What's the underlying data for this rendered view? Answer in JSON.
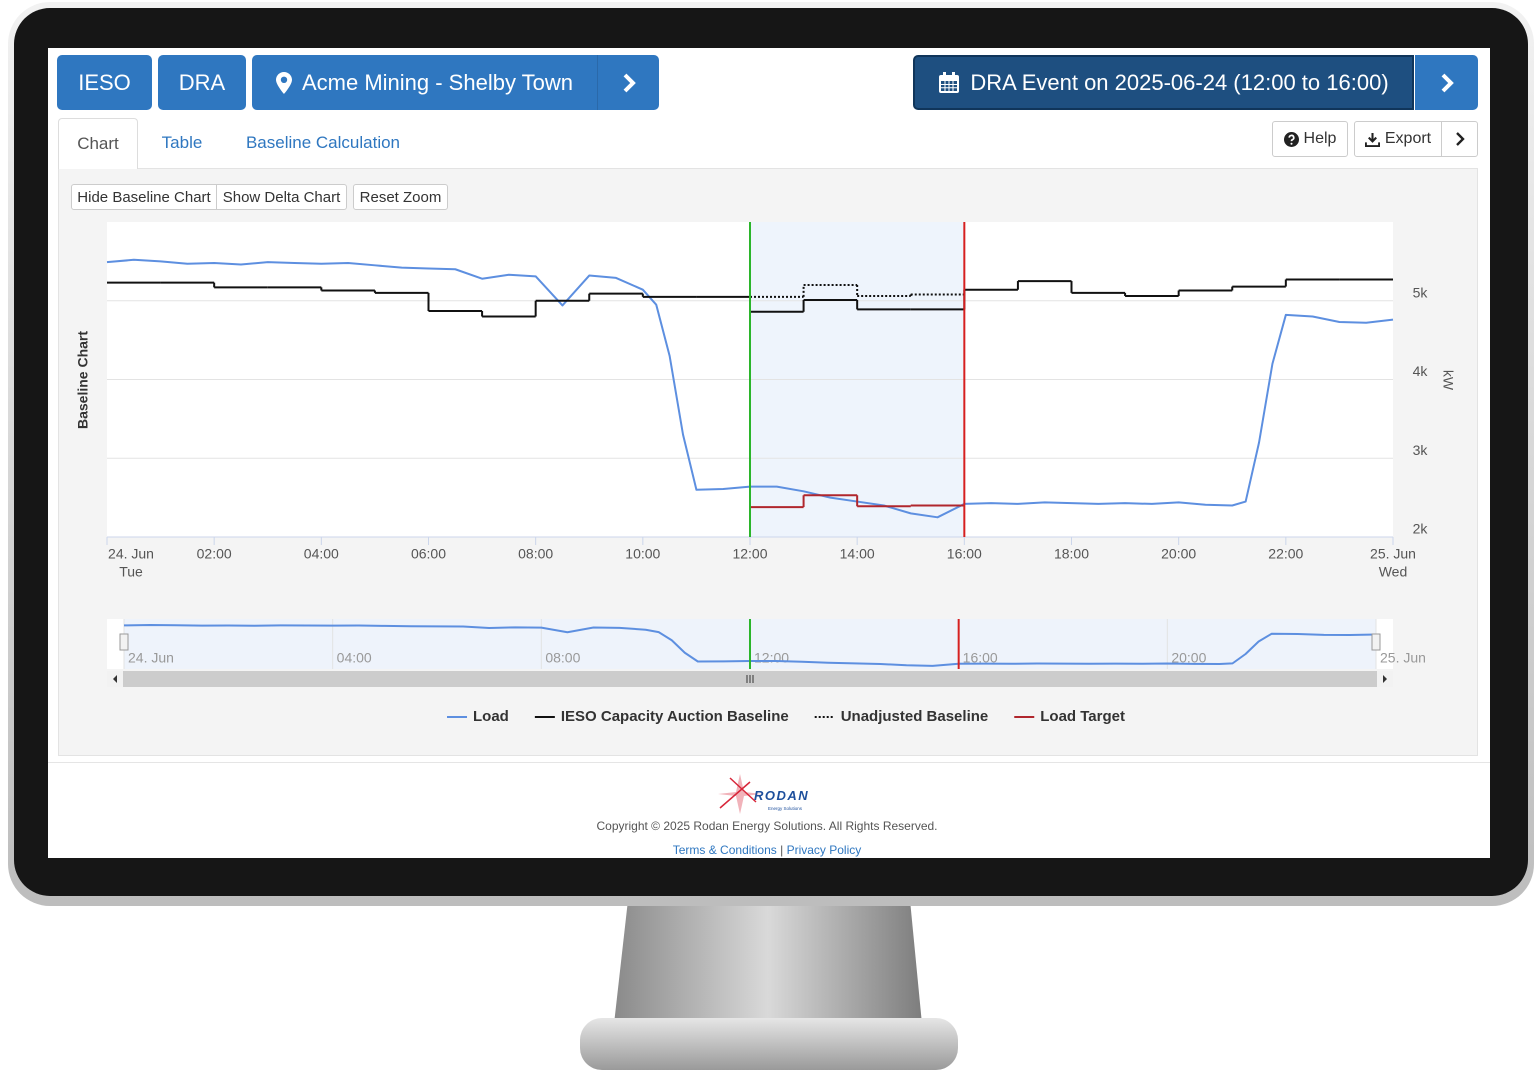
{
  "header": {
    "buttons": [
      "IESO",
      "DRA"
    ],
    "location": "Acme Mining - Shelby Town",
    "event": "DRA Event on 2025-06-24 (12:00 to 16:00)"
  },
  "tabs": [
    "Chart",
    "Table",
    "Baseline Calculation"
  ],
  "actions": [
    "Help",
    "Export"
  ],
  "toolbar": [
    "Hide Baseline Chart",
    "Show Delta Chart",
    "Reset Zoom"
  ],
  "chart_data": {
    "type": "line",
    "y_title": "Baseline Chart",
    "y2_title": "kW",
    "xlim": [
      0,
      24
    ],
    "xticks": [
      {
        "value": 0,
        "label": "24. Jun",
        "sublabel": "Tue"
      },
      {
        "value": 2,
        "label": "02:00"
      },
      {
        "value": 4,
        "label": "04:00"
      },
      {
        "value": 6,
        "label": "06:00"
      },
      {
        "value": 8,
        "label": "08:00"
      },
      {
        "value": 10,
        "label": "10:00"
      },
      {
        "value": 12,
        "label": "12:00"
      },
      {
        "value": 14,
        "label": "14:00"
      },
      {
        "value": 16,
        "label": "16:00"
      },
      {
        "value": 18,
        "label": "18:00"
      },
      {
        "value": 20,
        "label": "20:00"
      },
      {
        "value": 22,
        "label": "22:00"
      },
      {
        "value": 24,
        "label": "25. Jun",
        "sublabel": "Wed"
      }
    ],
    "ylim": [
      2000,
      6000
    ],
    "yticks": [
      {
        "value": 2000,
        "label": "2k"
      },
      {
        "value": 3000,
        "label": "3k"
      },
      {
        "value": 4000,
        "label": "4k"
      },
      {
        "value": 5000,
        "label": "5k"
      }
    ],
    "grid": true,
    "plot_band": {
      "from": 12,
      "to": 16,
      "color": "#eef4fc"
    },
    "plot_lines": [
      {
        "value": 12,
        "color": "#2bb52b"
      },
      {
        "value": 16,
        "color": "#d62020"
      }
    ],
    "series": [
      {
        "name": "Load",
        "color": "#5d8fe0",
        "x": [
          0,
          0.5,
          1,
          1.5,
          2,
          2.5,
          3,
          3.5,
          4,
          4.5,
          5,
          5.5,
          6,
          6.5,
          7,
          7.5,
          8,
          8.5,
          9,
          9.5,
          10,
          10.25,
          10.5,
          10.75,
          11,
          11.5,
          12,
          12.5,
          13,
          13.5,
          14,
          14.5,
          15,
          15.5,
          16,
          16.5,
          17,
          17.5,
          18,
          18.5,
          19,
          19.5,
          20,
          20.5,
          21,
          21.25,
          21.5,
          21.75,
          22,
          22.5,
          23,
          23.5,
          24
        ],
        "values": [
          5490,
          5520,
          5500,
          5470,
          5480,
          5460,
          5490,
          5480,
          5470,
          5480,
          5450,
          5420,
          5410,
          5400,
          5280,
          5330,
          5310,
          4940,
          5320,
          5290,
          5140,
          4950,
          4300,
          3300,
          2600,
          2610,
          2640,
          2640,
          2580,
          2500,
          2450,
          2400,
          2300,
          2250,
          2420,
          2430,
          2420,
          2440,
          2430,
          2420,
          2430,
          2420,
          2440,
          2410,
          2400,
          2450,
          3200,
          4200,
          4820,
          4800,
          4730,
          4720,
          4760
        ]
      },
      {
        "name": "IESO Capacity Auction Baseline",
        "color": "#111111",
        "step": true,
        "x": [
          0,
          1,
          2,
          3,
          4,
          5,
          6,
          7,
          8,
          9,
          10,
          11,
          12,
          13,
          14,
          15,
          16,
          17,
          18,
          19,
          20,
          21,
          22,
          23
        ],
        "x_end": [
          1,
          2,
          3,
          4,
          5,
          6,
          7,
          8,
          9,
          10,
          11,
          12,
          13,
          14,
          15,
          16,
          17,
          18,
          19,
          20,
          21,
          22,
          23,
          24
        ],
        "values": [
          5230,
          5230,
          5170,
          5170,
          5130,
          5100,
          4870,
          4800,
          5000,
          5090,
          5050,
          5050,
          4860,
          5010,
          4890,
          4890,
          5140,
          5250,
          5100,
          5060,
          5130,
          5180,
          5270,
          5270
        ]
      },
      {
        "name": "Unadjusted Baseline",
        "color": "#111111",
        "step": true,
        "dash": "2,2",
        "x": [
          12,
          13,
          14,
          15
        ],
        "x_end": [
          13,
          14,
          15,
          16
        ],
        "values": [
          5050,
          5200,
          5060,
          5080
        ]
      },
      {
        "name": "Load Target",
        "color": "#b0262d",
        "step": true,
        "x": [
          12,
          13,
          14,
          15
        ],
        "x_end": [
          13,
          14,
          15,
          16
        ],
        "values": [
          2380,
          2530,
          2390,
          2400
        ]
      }
    ],
    "navigator": {
      "xticks": [
        {
          "value": 0,
          "label": "24. Jun"
        },
        {
          "value": 4,
          "label": "04:00"
        },
        {
          "value": 8,
          "label": "08:00"
        },
        {
          "value": 12,
          "label": "12:00"
        },
        {
          "value": 16,
          "label": "16:00"
        },
        {
          "value": 20,
          "label": "20:00"
        },
        {
          "value": 24,
          "label": "25. Jun"
        }
      ]
    }
  },
  "footer": {
    "logo": "RODAN",
    "tagline": "Energy Solutions",
    "copyright": "Copyright © 2025 Rodan Energy Solutions. All Rights Reserved.",
    "links": [
      "Terms & Conditions",
      "|",
      "Privacy Policy"
    ]
  }
}
